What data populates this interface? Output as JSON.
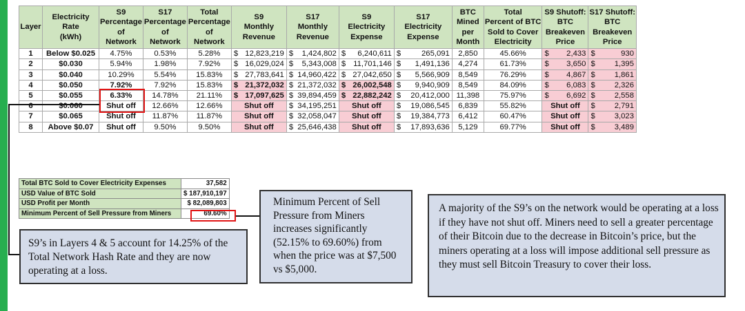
{
  "headers": [
    "Layer",
    "Electricity Rate (kWh)",
    "S9 Percentage of Network",
    "S17 Percentage of Network",
    "Total Percentage of Network",
    "S9 Monthly Revenue",
    "S17 Monthly Revenue",
    "S9 Electricity Expense",
    "S17 Electricity Expense",
    "BTC Mined per Month",
    "Total Percent of BTC Sold to Cover Electricity",
    "S9 Shutoff: BTC Breakeven Price",
    "S17 Shutoff: BTC Breakeven Price"
  ],
  "rows": [
    {
      "layer": "1",
      "rate": "Below $0.025",
      "s9p": "4.75%",
      "s17p": "0.53%",
      "tp": "5.28%",
      "s9r": "$ 12,823,219",
      "s17r": "$  1,424,802",
      "s9e": "$  6,240,611",
      "s17e": "$     265,091",
      "btc": "2,850",
      "sold": "45.66%",
      "s9b": "2,433",
      "s17b": "930",
      "s9r_red": false,
      "s9e_red": false,
      "s9p_red": false,
      "s9b_shut": false
    },
    {
      "layer": "2",
      "rate": "$0.030",
      "s9p": "5.94%",
      "s17p": "1.98%",
      "tp": "7.92%",
      "s9r": "$ 16,029,024",
      "s17r": "$  5,343,008",
      "s9e": "$ 11,701,146",
      "s17e": "$  1,491,136",
      "btc": "4,274",
      "sold": "61.73%",
      "s9b": "3,650",
      "s17b": "1,395",
      "s9r_red": false,
      "s9e_red": false,
      "s9p_red": false,
      "s9b_shut": false
    },
    {
      "layer": "3",
      "rate": "$0.040",
      "s9p": "10.29%",
      "s17p": "5.54%",
      "tp": "15.83%",
      "s9r": "$ 27,783,641",
      "s17r": "$ 14,960,422",
      "s9e": "$ 27,042,650",
      "s17e": "$  5,566,909",
      "btc": "8,549",
      "sold": "76.29%",
      "s9b": "4,867",
      "s17b": "1,861",
      "s9r_red": false,
      "s9e_red": false,
      "s9p_red": false,
      "s9b_shut": false
    },
    {
      "layer": "4",
      "rate": "$0.050",
      "s9p": "7.92%",
      "s17p": "7.92%",
      "tp": "15.83%",
      "s9r": "$ 21,372,032",
      "s17r": "$ 21,372,032",
      "s9e": "$ 26,002,548",
      "s17e": "$  9,940,909",
      "btc": "8,549",
      "sold": "84.09%",
      "s9b": "6,083",
      "s17b": "2,326",
      "s9r_red": true,
      "s9e_red": true,
      "s9p_red": true,
      "s9b_shut": false
    },
    {
      "layer": "5",
      "rate": "$0.055",
      "s9p": "6.33%",
      "s17p": "14.78%",
      "tp": "21.11%",
      "s9r": "$ 17,097,625",
      "s17r": "$ 39,894,459",
      "s9e": "$ 22,882,242",
      "s17e": "$ 20,412,000",
      "btc": "11,398",
      "sold": "75.97%",
      "s9b": "6,692",
      "s17b": "2,558",
      "s9r_red": true,
      "s9e_red": true,
      "s9p_red": true,
      "s9b_shut": false
    },
    {
      "layer": "6",
      "rate": "$0.060",
      "s9p": "Shut off",
      "s17p": "12.66%",
      "tp": "12.66%",
      "s9r": "Shut off",
      "s17r": "$ 34,195,251",
      "s9e": "Shut off",
      "s17e": "$ 19,086,545",
      "btc": "6,839",
      "sold": "55.82%",
      "s9b": "Shut off",
      "s17b": "2,791",
      "s9r_red": true,
      "s9e_red": true,
      "s9p_red": true,
      "s9b_shut": true
    },
    {
      "layer": "7",
      "rate": "$0.065",
      "s9p": "Shut off",
      "s17p": "11.87%",
      "tp": "11.87%",
      "s9r": "Shut off",
      "s17r": "$ 32,058,047",
      "s9e": "Shut off",
      "s17e": "$ 19,384,773",
      "btc": "6,412",
      "sold": "60.47%",
      "s9b": "Shut off",
      "s17b": "3,023",
      "s9r_red": true,
      "s9e_red": true,
      "s9p_red": true,
      "s9b_shut": true
    },
    {
      "layer": "8",
      "rate": "Above $0.07",
      "s9p": "Shut off",
      "s17p": "9.50%",
      "tp": "9.50%",
      "s9r": "Shut off",
      "s17r": "$ 25,646,438",
      "s9e": "Shut off",
      "s17e": "$ 17,893,636",
      "btc": "5,129",
      "sold": "69.77%",
      "s9b": "Shut off",
      "s17b": "3,489",
      "s9r_red": true,
      "s9e_red": true,
      "s9p_red": true,
      "s9b_shut": true
    }
  ],
  "summary": [
    {
      "label": "Total BTC Sold to Cover Electricity Expenses",
      "value": "37,582"
    },
    {
      "label": "USD Value of BTC Sold",
      "value": "$ 187,910,197"
    },
    {
      "label": "USD Profit per Month",
      "value": "$   82,089,803"
    },
    {
      "label": "Minimum Percent of Sell Pressure from Miners",
      "value": "69.60%"
    }
  ],
  "notes": {
    "layers": "S9’s in Layers 4 & 5 account for 14.25% of the Total Network Hash Rate and they are now operating at a loss.",
    "sell_pressure": "Minimum Percent of Sell Pressure from Miners increases significantly (52.15% to 69.60%) from when the price was at $7,500 vs $5,000.",
    "majority": "A majority of the S9’s on the network would be operating at a loss if they have not shut off. Miners need to sell a greater percentage of their Bitcoin due to the decrease in Bitcoin’s price, but the miners operating at a loss will impose additional sell pressure as they must sell Bitcoin Treasury to cover their loss."
  },
  "colors": {
    "header_bg": "#cfe4c0",
    "pink": "#f8cdd4",
    "red_text": "#d61a1a",
    "note_bg": "#d5dcea",
    "accent": "#27ae4f"
  }
}
